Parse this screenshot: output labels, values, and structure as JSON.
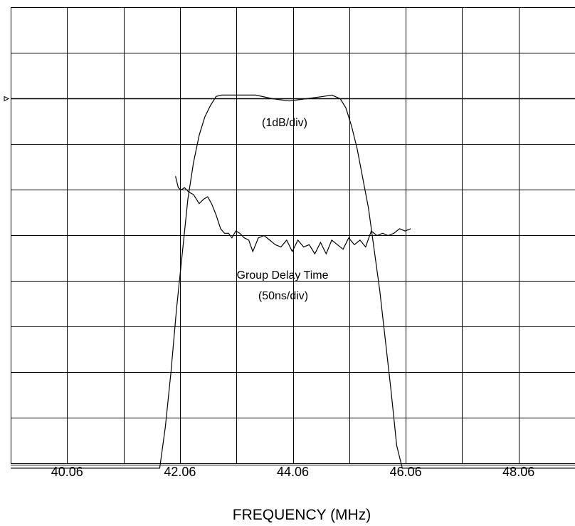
{
  "chart_data": {
    "type": "line",
    "xlabel": "FREQUENCY (MHz)",
    "ylabel": "",
    "xlim": [
      39.06,
      49.06
    ],
    "x_ticks": [
      "40.06",
      "42.06",
      "44.06",
      "46.06",
      "48.06"
    ],
    "grid": true,
    "divisions": {
      "x": 10,
      "y": 10
    },
    "reference_marker": "triangle",
    "annotations": {
      "amplitude_scale": "(1dB/div)",
      "group_delay_name": "Group Delay Time",
      "group_delay_scale": "(50ns/div)"
    },
    "series": [
      {
        "id": "amplitude",
        "unit": "dB",
        "x": [
          39.06,
          41.7,
          41.8,
          41.9,
          42.0,
          42.1,
          42.2,
          42.3,
          42.4,
          42.5,
          42.6,
          42.7,
          42.8,
          43.0,
          43.4,
          43.7,
          44.0,
          44.3,
          44.6,
          44.75,
          44.9,
          45.0,
          45.1,
          45.2,
          45.4,
          45.6,
          45.8,
          45.9,
          46.0,
          49.06
        ],
        "y": [
          -8.1,
          -8.1,
          -7.2,
          -6.0,
          -4.6,
          -3.4,
          -2.2,
          -1.4,
          -0.8,
          -0.4,
          -0.15,
          0.05,
          0.08,
          0.08,
          0.08,
          0.0,
          -0.05,
          0.0,
          0.05,
          0.08,
          0.0,
          -0.2,
          -0.6,
          -1.1,
          -2.4,
          -4.2,
          -6.4,
          -7.6,
          -8.1,
          -8.1
        ]
      },
      {
        "id": "group_delay",
        "unit": "ns",
        "x": [
          41.98,
          42.03,
          42.08,
          42.14,
          42.22,
          42.3,
          42.4,
          42.48,
          42.55,
          42.62,
          42.7,
          42.78,
          42.85,
          42.92,
          42.98,
          43.05,
          43.12,
          43.2,
          43.28,
          43.35,
          43.45,
          43.55,
          43.65,
          43.75,
          43.85,
          43.95,
          44.05,
          44.15,
          44.25,
          44.35,
          44.45,
          44.55,
          44.65,
          44.75,
          44.85,
          44.95,
          45.05,
          45.15,
          45.25,
          45.35,
          45.45,
          45.55,
          45.65,
          45.75,
          45.85,
          45.95,
          46.05,
          46.15
        ],
        "y": [
          -1.7,
          -1.95,
          -2.0,
          -1.95,
          -2.05,
          -2.1,
          -2.3,
          -2.2,
          -2.15,
          -2.3,
          -2.55,
          -2.85,
          -2.95,
          -2.95,
          -3.05,
          -2.9,
          -2.95,
          -3.05,
          -3.1,
          -3.35,
          -3.05,
          -3.0,
          -3.1,
          -3.2,
          -3.25,
          -3.1,
          -3.35,
          -3.1,
          -3.25,
          -3.2,
          -3.4,
          -3.15,
          -3.4,
          -3.1,
          -3.2,
          -3.3,
          -3.05,
          -3.2,
          -3.1,
          -3.25,
          -2.9,
          -3.0,
          -2.95,
          -3.0,
          -2.95,
          -2.85,
          -2.9,
          -2.85
        ]
      }
    ]
  }
}
